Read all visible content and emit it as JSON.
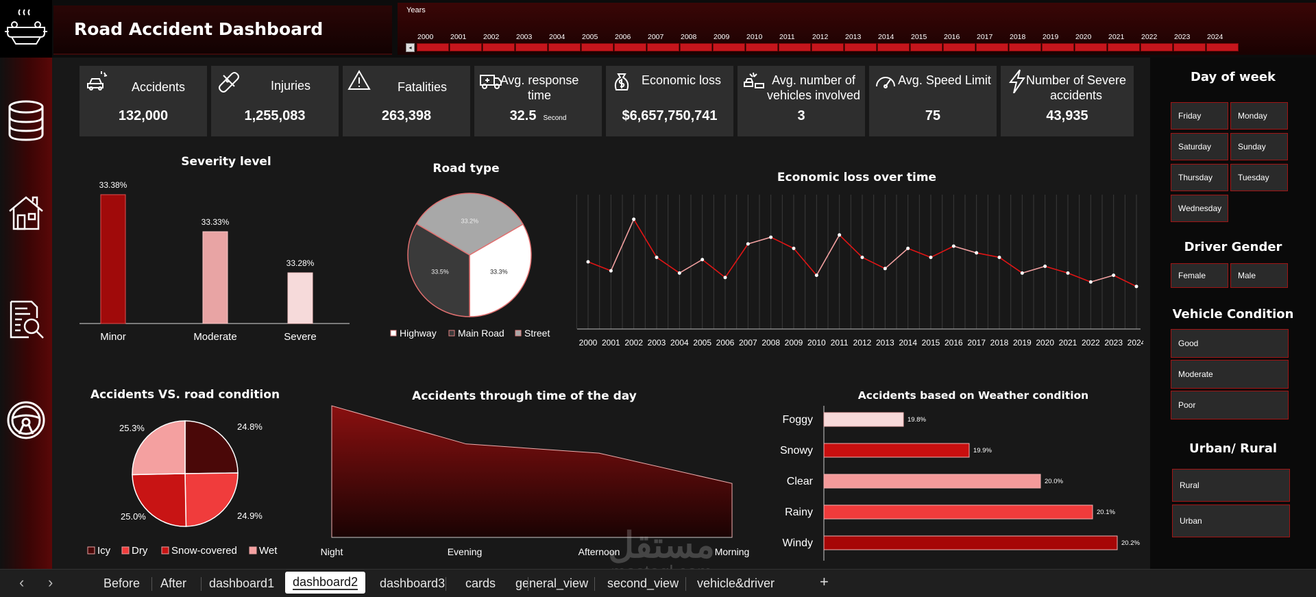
{
  "header": {
    "title": "Road Accident Dashboard",
    "years_caption": "Years",
    "years": [
      "2000",
      "2001",
      "2002",
      "2003",
      "2004",
      "2005",
      "2006",
      "2007",
      "2008",
      "2009",
      "2010",
      "2011",
      "2012",
      "2013",
      "2014",
      "2015",
      "2016",
      "2017",
      "2018",
      "2019",
      "2020",
      "2021",
      "2022",
      "2023",
      "2024"
    ]
  },
  "nav": {
    "icons": [
      "database-icon",
      "house-icon",
      "report-search-icon",
      "steering-wheel-icon"
    ]
  },
  "kpis": [
    {
      "label": "Accidents",
      "value": "132,000",
      "unit": "",
      "icon": "car-crash-icon"
    },
    {
      "label": "Injuries",
      "value": "1,255,083",
      "unit": "",
      "icon": "bandage-icon"
    },
    {
      "label": "Fatalities",
      "value": "263,398",
      "unit": "",
      "icon": "warning-icon"
    },
    {
      "label": "Avg. response time",
      "value": "32.5",
      "unit": "Second",
      "icon": "ambulance-icon"
    },
    {
      "label": "Economic loss",
      "value": "$6,657,750,741",
      "unit": "",
      "icon": "money-bag-icon"
    },
    {
      "label": "Avg. number of vehicles involved",
      "value": "3",
      "unit": "",
      "icon": "vehicles-crash-icon"
    },
    {
      "label": "Avg. Speed Limit",
      "value": "75",
      "unit": "",
      "icon": "speedometer-icon"
    },
    {
      "label": "Number of Severe accidents",
      "value": "43,935",
      "unit": "",
      "icon": "lightning-icon"
    }
  ],
  "right_panel": {
    "day_title": "Day of week",
    "days": [
      "Friday",
      "Monday",
      "Saturday",
      "Sunday",
      "Thursday",
      "Tuesday",
      "Wednesday"
    ],
    "gender_title": "Driver Gender",
    "genders": [
      "Female",
      "Male"
    ],
    "vehicle_title": "Vehicle Condition",
    "vehicle_conditions": [
      "Good",
      "Moderate",
      "Poor"
    ],
    "urban_title": "Urban/ Rural",
    "urban": [
      "Rural",
      "Urban"
    ]
  },
  "chart_data": [
    {
      "type": "bar",
      "title": "Severity level",
      "categories": [
        "Minor",
        "Moderate",
        "Severe"
      ],
      "values": [
        33.38,
        33.33,
        33.28
      ],
      "data_labels": [
        "33.38%",
        "33.33%",
        "33.28%"
      ],
      "colors": [
        "#a00a0a",
        "#e8a4a4",
        "#f6dada"
      ]
    },
    {
      "type": "pie",
      "title": "Road type",
      "categories": [
        "Highway",
        "Main Road",
        "Street"
      ],
      "values": [
        33.3,
        33.5,
        33.2
      ],
      "data_labels": [
        "33.3%",
        "33.5%",
        "33.2%"
      ],
      "colors": [
        "#ffffff",
        "#3a3a3a",
        "#a8a8a8"
      ],
      "legend": "bottom"
    },
    {
      "type": "line",
      "title": "Economic loss over time",
      "x": [
        "2000",
        "2001",
        "2002",
        "2003",
        "2004",
        "2005",
        "2006",
        "2007",
        "2008",
        "2009",
        "2010",
        "2011",
        "2012",
        "2013",
        "2014",
        "2015",
        "2016",
        "2017",
        "2018",
        "2019",
        "2020",
        "2021",
        "2022",
        "2023",
        "2024"
      ],
      "values": [
        60,
        56,
        79,
        62,
        55,
        61,
        53,
        68,
        71,
        66,
        54,
        72,
        62,
        57,
        66,
        62,
        67,
        64,
        62,
        55,
        58,
        55,
        51,
        54,
        49
      ],
      "ylim": [
        30,
        90
      ],
      "grid": true
    },
    {
      "type": "pie",
      "title": "Accidents VS. road condition",
      "categories": [
        "Icy",
        "Dry",
        "Snow-covered",
        "Wet"
      ],
      "values": [
        24.8,
        24.9,
        25.0,
        25.3
      ],
      "data_labels": [
        "24.8%",
        "24.9%",
        "25.0%",
        "25.3%"
      ],
      "colors": [
        "#4a0808",
        "#f03c3c",
        "#c81414",
        "#f4a0a0"
      ],
      "legend": "bottom"
    },
    {
      "type": "area",
      "title": "Accidents through time of the day",
      "categories": [
        "Night",
        "Evening",
        "Afternoon",
        "Morning"
      ],
      "values": [
        100,
        71,
        64,
        41
      ],
      "ylim": [
        0,
        100
      ]
    },
    {
      "type": "bar",
      "orientation": "horizontal",
      "title": "Accidents based on Weather condition",
      "categories": [
        "Foggy",
        "Snowy",
        "Clear",
        "Rainy",
        "Windy"
      ],
      "values": [
        19.8,
        19.9,
        20.0,
        20.1,
        20.2
      ],
      "data_labels": [
        "19.8%",
        "19.9%",
        "20.0%",
        "20.1%",
        "20.2%"
      ],
      "colors": [
        "#f7d9d9",
        "#c80f0f",
        "#f49a9a",
        "#ef3b3b",
        "#a60606"
      ]
    }
  ],
  "tabs": {
    "items": [
      "Before",
      "After",
      "dashboard1",
      "dashboard2",
      "dashboard3",
      "cards",
      "general_view",
      "second_view",
      "vehicle&driver"
    ],
    "active": "dashboard2",
    "prev": "‹",
    "next": "›",
    "add": "+"
  },
  "watermark": {
    "arabic": "مستقل",
    "latin": "mostaql.com"
  }
}
